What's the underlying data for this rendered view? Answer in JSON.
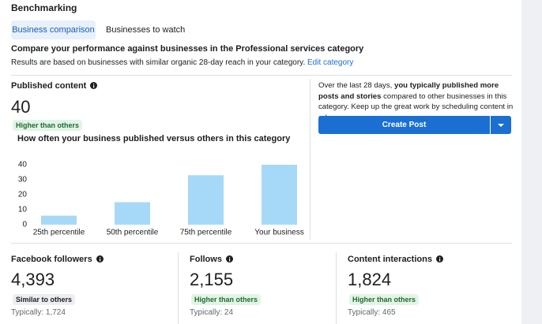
{
  "header": {
    "title": "Benchmarking"
  },
  "tabs": [
    "Business comparison",
    "Businesses to watch"
  ],
  "comparison": {
    "title": "Compare your performance against businesses in the Professional services category",
    "description": "Results are based on businesses with similar organic 28-day reach in your category.",
    "link": "Edit category"
  },
  "published": {
    "label": "Published content",
    "value": "40",
    "badge": "Higher than others",
    "chart": {
      "type": "bar",
      "title": "How often your business published versus others in this category",
      "categories": [
        "25th percentile",
        "50th percentile",
        "75th percentile",
        "Your business"
      ],
      "values": [
        6,
        15,
        33,
        40
      ],
      "color": "#a6d9f7",
      "ylim": [
        0,
        40
      ],
      "yticks": [
        0,
        10,
        20,
        30,
        40
      ]
    }
  },
  "insight": {
    "text_start": "Over the last 28 days, ",
    "text_bold": "you typically published more posts and stories",
    "text_end": " compared to other businesses in this category. Keep up the great work by scheduling content in advance."
  },
  "button": "Create Post",
  "metrics": [
    {
      "label": "Facebook followers",
      "value": "4,393",
      "badge": "Similar to others",
      "typical": "Typically: 1,724"
    },
    {
      "label": "Follows",
      "value": "2,155",
      "badge": "Higher than others",
      "typical": "Typically: 24"
    },
    {
      "label": "Content interactions",
      "value": "1,824",
      "badge": "Higher than others",
      "typical": "Typically: 465"
    }
  ]
}
